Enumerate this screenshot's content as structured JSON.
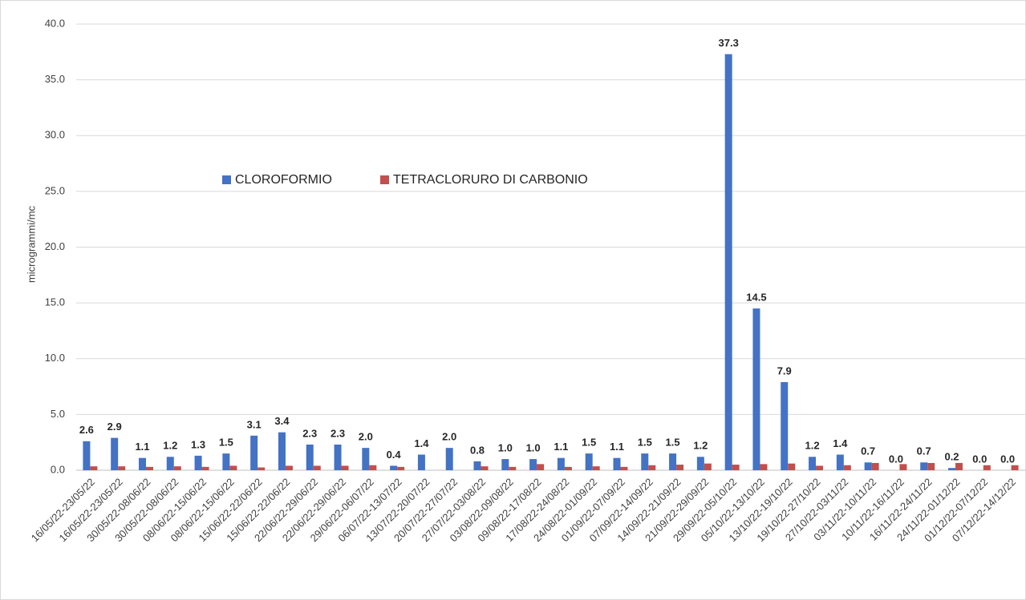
{
  "chart_data": {
    "type": "bar",
    "y_label": "microgrammi/mc",
    "categories": [
      "16/05/22-23/05/22",
      "16/05/22-23/05/22",
      "30/05/22-08/06/22",
      "30/05/22-08/06/22",
      "08/06/22-15/06/22",
      "08/06/22-15/06/22",
      "15/06/22-22/06/22",
      "15/06/22-22/06/22",
      "22/06/22-29/06/22",
      "22/06/22-29/06/22",
      "29/06/22-06/07/22",
      "06/07/22-13/07/22",
      "13/07/22-20/07/22",
      "20/07/22-27/07/22",
      "27/07/22-03/08/22",
      "03/08/22-09/08/22",
      "09/08/22-17/08/22",
      "17/08/22-24/08/22",
      "24/08/22-01/09/22",
      "01/09/22-07/09/22",
      "07/09/22-14/09/22",
      "14/09/22-21/09/22",
      "21/09/22-29/09/22",
      "29/09/22-05/10/22",
      "05/10/22-13/10/22",
      "13/10/22-19/10/22",
      "19/10/22-27/10/22",
      "27/10/22-03/11/22",
      "03/11/22-10/11/22",
      "10/11/22-16/11/22",
      "16/11/22-24/11/22",
      "24/11/22-01/12/22",
      "01/12/22-07/12/22",
      "07/12/22-14/12/22"
    ],
    "series": [
      {
        "name": "CLOROFORMIO",
        "color": "#4472c4",
        "values": [
          2.6,
          2.9,
          1.1,
          1.2,
          1.3,
          1.5,
          3.1,
          3.4,
          2.3,
          2.3,
          2,
          0.4,
          1.4,
          2,
          0.8,
          1,
          1,
          1.1,
          1.5,
          1.1,
          1.5,
          1.5,
          1.2,
          37.3,
          14.5,
          7.9,
          1.2,
          1.4,
          0.7,
          0,
          0.7,
          0.2,
          0,
          0
        ],
        "value_labels": [
          "2.6",
          "2.9",
          "1.1",
          "1.2",
          "1.3",
          "1.5",
          "3.1",
          "3.4",
          "2.3",
          "2.3",
          "2.0",
          "0.4",
          "1.4",
          "2.0",
          "0.8",
          "1.0",
          "1.0",
          "1.1",
          "1.5",
          "1.1",
          "1.5",
          "1.5",
          "1.2",
          "37.3",
          "14.5",
          "7.9",
          "1.2",
          "1.4",
          "0.7",
          "0.0",
          "0.7",
          "0.2",
          "0.0",
          "0.0"
        ]
      },
      {
        "name": "TETRACLORURO DI CARBONIO",
        "color": "#c0504d",
        "values": [
          0.35,
          0.35,
          0.3,
          0.35,
          0.3,
          0.4,
          0.25,
          0.4,
          0.4,
          0.4,
          0.45,
          0.3,
          null,
          null,
          0.35,
          0.3,
          0.55,
          0.3,
          0.35,
          0.3,
          0.45,
          0.5,
          0.6,
          0.5,
          0.55,
          0.6,
          0.4,
          0.45,
          0.65,
          0.55,
          0.65,
          0.65,
          0.45,
          0.45
        ]
      }
    ],
    "ylim": [
      0,
      40
    ],
    "yticks": [
      {
        "value": 0,
        "label": "0.0"
      },
      {
        "value": 5,
        "label": "5.0"
      },
      {
        "value": 10,
        "label": "10.0"
      },
      {
        "value": 15,
        "label": "15.0"
      },
      {
        "value": 20,
        "label": "20.0"
      },
      {
        "value": 25,
        "label": "25.0"
      },
      {
        "value": 30,
        "label": "30.0"
      },
      {
        "value": 35,
        "label": "35.0"
      },
      {
        "value": 40,
        "label": "40.0"
      }
    ],
    "grid": true
  }
}
